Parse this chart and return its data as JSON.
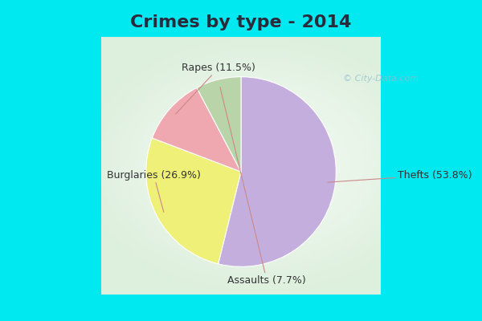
{
  "title": "Crimes by type - 2014",
  "labels": [
    "Thefts",
    "Burglaries",
    "Rapes",
    "Assaults"
  ],
  "values": [
    53.8,
    26.9,
    11.5,
    7.7
  ],
  "colors": [
    "#c4aedd",
    "#eef077",
    "#f0a8b0",
    "#b8d4a8"
  ],
  "bg_cyan": "#00e8f0",
  "bg_inner_top": "#e8f8f4",
  "bg_inner_bottom": "#d0edd8",
  "title_fontsize": 16,
  "label_fontsize": 9,
  "startangle": 90,
  "watermark": "© City-Data.com",
  "title_color": "#2a2a3a"
}
